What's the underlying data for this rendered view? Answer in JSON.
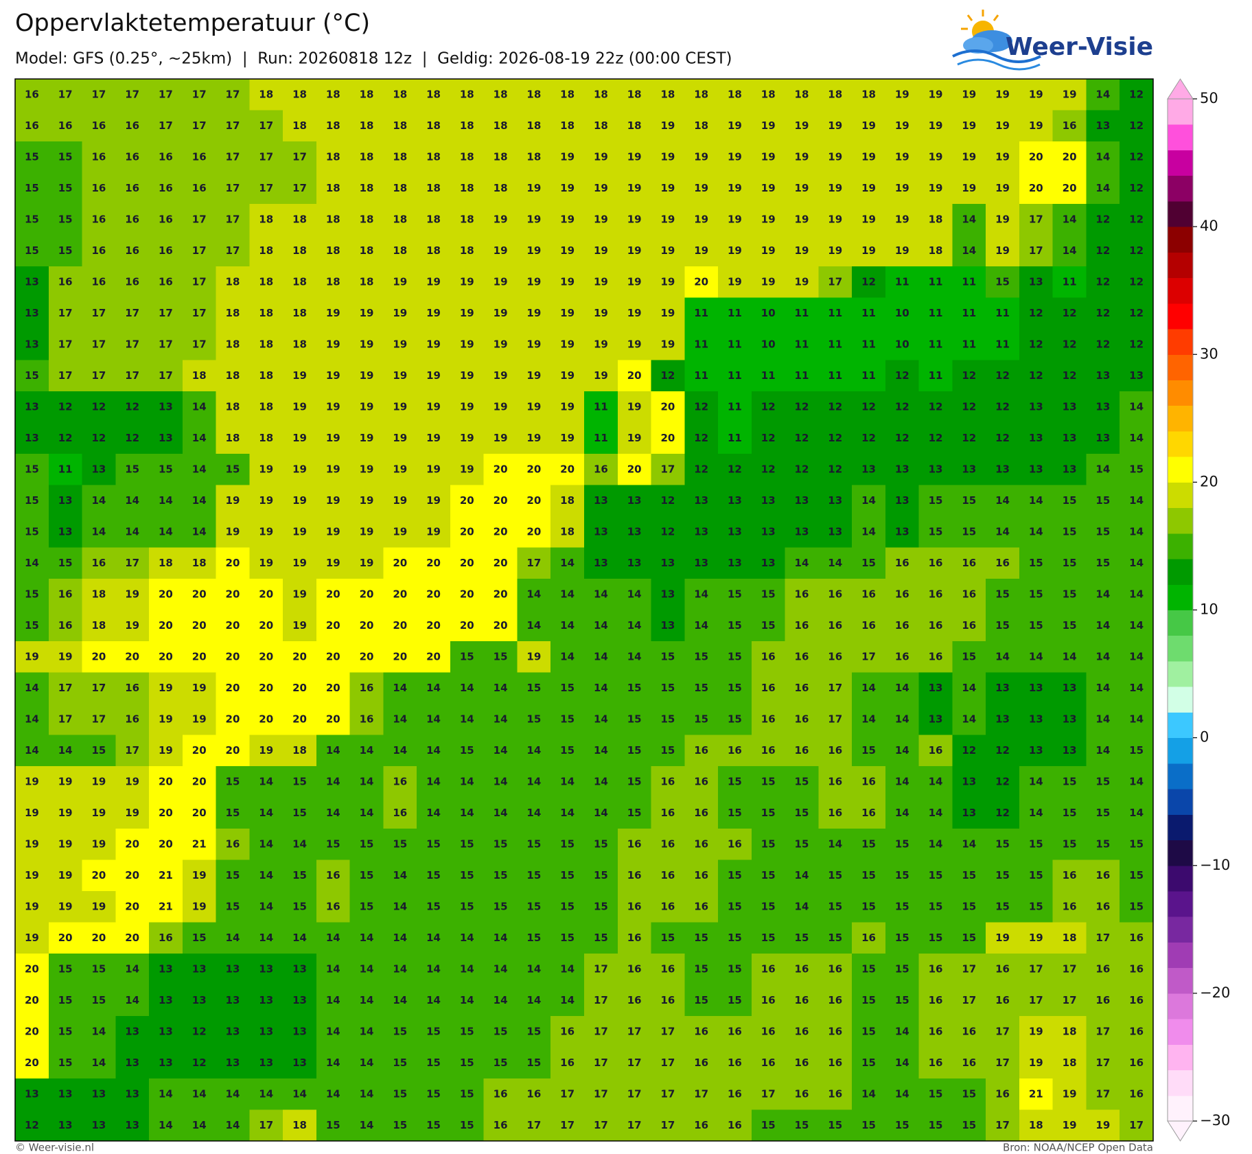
{
  "header": {
    "title": "Oppervlaktetemperatuur (°C)",
    "subtitle": "Model: GFS (0.25°, ~25km)  |  Run: 20260818 12z  |  Geldig: 2026-08-19 22z (00:00 CEST)"
  },
  "logo": "Weer-Visie",
  "map": {
    "type": "grid",
    "values": [
      [
        16,
        17,
        17,
        17,
        17,
        17,
        17,
        18,
        18,
        18,
        18,
        18,
        18,
        18,
        18,
        18,
        18,
        18,
        18,
        18,
        18,
        18,
        18,
        18,
        18,
        18,
        19,
        19,
        19,
        19,
        19,
        19,
        14,
        12
      ],
      [
        16,
        16,
        16,
        16,
        17,
        17,
        17,
        17,
        18,
        18,
        18,
        18,
        18,
        18,
        18,
        18,
        18,
        18,
        18,
        19,
        18,
        19,
        19,
        19,
        19,
        19,
        19,
        19,
        19,
        19,
        19,
        16,
        13,
        12
      ],
      [
        15,
        15,
        16,
        16,
        16,
        16,
        17,
        17,
        17,
        18,
        18,
        18,
        18,
        18,
        18,
        18,
        19,
        19,
        19,
        19,
        19,
        19,
        19,
        19,
        19,
        19,
        19,
        19,
        19,
        19,
        20,
        20,
        14,
        12
      ],
      [
        15,
        15,
        16,
        16,
        16,
        16,
        17,
        17,
        17,
        18,
        18,
        18,
        18,
        18,
        18,
        19,
        19,
        19,
        19,
        19,
        19,
        19,
        19,
        19,
        19,
        19,
        19,
        19,
        19,
        19,
        20,
        20,
        14,
        12
      ],
      [
        15,
        15,
        16,
        16,
        16,
        17,
        17,
        18,
        18,
        18,
        18,
        18,
        18,
        18,
        19,
        19,
        19,
        19,
        19,
        19,
        19,
        19,
        19,
        19,
        19,
        19,
        19,
        18,
        14,
        19,
        17,
        14,
        12,
        12
      ],
      [
        15,
        15,
        16,
        16,
        16,
        17,
        17,
        18,
        18,
        18,
        18,
        18,
        18,
        18,
        19,
        19,
        19,
        19,
        19,
        19,
        19,
        19,
        19,
        19,
        19,
        19,
        19,
        18,
        14,
        19,
        17,
        14,
        12,
        12
      ],
      [
        13,
        16,
        16,
        16,
        16,
        17,
        18,
        18,
        18,
        18,
        18,
        19,
        19,
        19,
        19,
        19,
        19,
        19,
        19,
        19,
        20,
        19,
        19,
        19,
        17,
        12,
        11,
        11,
        11,
        15,
        13,
        11,
        12,
        12
      ],
      [
        13,
        17,
        17,
        17,
        17,
        17,
        18,
        18,
        18,
        19,
        19,
        19,
        19,
        19,
        19,
        19,
        19,
        19,
        19,
        19,
        11,
        11,
        10,
        11,
        11,
        11,
        10,
        11,
        11,
        11,
        12,
        12,
        12,
        12
      ],
      [
        13,
        17,
        17,
        17,
        17,
        17,
        18,
        18,
        18,
        19,
        19,
        19,
        19,
        19,
        19,
        19,
        19,
        19,
        19,
        19,
        11,
        11,
        10,
        11,
        11,
        11,
        10,
        11,
        11,
        11,
        12,
        12,
        12,
        12
      ],
      [
        15,
        17,
        17,
        17,
        17,
        18,
        18,
        18,
        19,
        19,
        19,
        19,
        19,
        19,
        19,
        19,
        19,
        19,
        20,
        12,
        11,
        11,
        11,
        11,
        11,
        11,
        12,
        11,
        12,
        12,
        12,
        12,
        13,
        13
      ],
      [
        13,
        12,
        12,
        12,
        13,
        14,
        18,
        18,
        19,
        19,
        19,
        19,
        19,
        19,
        19,
        19,
        19,
        11,
        19,
        20,
        12,
        11,
        12,
        12,
        12,
        12,
        12,
        12,
        12,
        12,
        13,
        13,
        13,
        14
      ],
      [
        13,
        12,
        12,
        12,
        13,
        14,
        18,
        18,
        19,
        19,
        19,
        19,
        19,
        19,
        19,
        19,
        19,
        11,
        19,
        20,
        12,
        11,
        12,
        12,
        12,
        12,
        12,
        12,
        12,
        12,
        13,
        13,
        13,
        14
      ],
      [
        15,
        11,
        13,
        15,
        15,
        14,
        15,
        19,
        19,
        19,
        19,
        19,
        19,
        19,
        20,
        20,
        20,
        16,
        20,
        17,
        12,
        12,
        12,
        12,
        12,
        13,
        13,
        13,
        13,
        13,
        13,
        13,
        14,
        15
      ],
      [
        15,
        13,
        14,
        14,
        14,
        14,
        19,
        19,
        19,
        19,
        19,
        19,
        19,
        20,
        20,
        20,
        18,
        13,
        13,
        12,
        13,
        13,
        13,
        13,
        13,
        14,
        13,
        15,
        15,
        14,
        14,
        15,
        15,
        14
      ],
      [
        15,
        13,
        14,
        14,
        14,
        14,
        19,
        19,
        19,
        19,
        19,
        19,
        19,
        20,
        20,
        20,
        18,
        13,
        13,
        12,
        13,
        13,
        13,
        13,
        13,
        14,
        13,
        15,
        15,
        14,
        14,
        15,
        15,
        14
      ],
      [
        14,
        15,
        16,
        17,
        18,
        18,
        20,
        19,
        19,
        19,
        19,
        20,
        20,
        20,
        20,
        17,
        14,
        13,
        13,
        13,
        13,
        13,
        13,
        14,
        14,
        15,
        16,
        16,
        16,
        16,
        15,
        15,
        15,
        14
      ],
      [
        15,
        16,
        18,
        19,
        20,
        20,
        20,
        20,
        19,
        20,
        20,
        20,
        20,
        20,
        20,
        14,
        14,
        14,
        14,
        13,
        14,
        15,
        15,
        16,
        16,
        16,
        16,
        16,
        16,
        15,
        15,
        15,
        14,
        14
      ],
      [
        15,
        16,
        18,
        19,
        20,
        20,
        20,
        20,
        19,
        20,
        20,
        20,
        20,
        20,
        20,
        14,
        14,
        14,
        14,
        13,
        14,
        15,
        15,
        16,
        16,
        16,
        16,
        16,
        16,
        15,
        15,
        15,
        14,
        14
      ],
      [
        19,
        19,
        20,
        20,
        20,
        20,
        20,
        20,
        20,
        20,
        20,
        20,
        20,
        15,
        15,
        19,
        14,
        14,
        14,
        15,
        15,
        15,
        16,
        16,
        16,
        17,
        16,
        16,
        15,
        14,
        14,
        14,
        14,
        14
      ],
      [
        14,
        17,
        17,
        16,
        19,
        19,
        20,
        20,
        20,
        20,
        16,
        14,
        14,
        14,
        14,
        15,
        15,
        14,
        15,
        15,
        15,
        15,
        16,
        16,
        17,
        14,
        14,
        13,
        14,
        13,
        13,
        13,
        14,
        14
      ],
      [
        14,
        17,
        17,
        16,
        19,
        19,
        20,
        20,
        20,
        20,
        16,
        14,
        14,
        14,
        14,
        15,
        15,
        14,
        15,
        15,
        15,
        15,
        16,
        16,
        17,
        14,
        14,
        13,
        14,
        13,
        13,
        13,
        14,
        14
      ],
      [
        14,
        14,
        15,
        17,
        19,
        20,
        20,
        19,
        18,
        14,
        14,
        14,
        14,
        15,
        14,
        14,
        15,
        14,
        15,
        15,
        16,
        16,
        16,
        16,
        16,
        15,
        14,
        16,
        12,
        12,
        13,
        13,
        14,
        15
      ],
      [
        19,
        19,
        19,
        19,
        20,
        20,
        15,
        14,
        15,
        14,
        14,
        16,
        14,
        14,
        14,
        14,
        14,
        14,
        15,
        16,
        16,
        15,
        15,
        15,
        16,
        16,
        14,
        14,
        13,
        12,
        14,
        15,
        15,
        14
      ],
      [
        19,
        19,
        19,
        19,
        20,
        20,
        15,
        14,
        15,
        14,
        14,
        16,
        14,
        14,
        14,
        14,
        14,
        14,
        15,
        16,
        16,
        15,
        15,
        15,
        16,
        16,
        14,
        14,
        13,
        12,
        14,
        15,
        15,
        14
      ],
      [
        19,
        19,
        19,
        20,
        20,
        21,
        16,
        14,
        14,
        15,
        15,
        15,
        15,
        15,
        15,
        15,
        15,
        15,
        16,
        16,
        16,
        16,
        15,
        15,
        14,
        15,
        15,
        14,
        14,
        15,
        15,
        15,
        15,
        15
      ],
      [
        19,
        19,
        20,
        20,
        21,
        19,
        15,
        14,
        15,
        16,
        15,
        14,
        15,
        15,
        15,
        15,
        15,
        15,
        16,
        16,
        16,
        15,
        15,
        14,
        15,
        15,
        15,
        15,
        15,
        15,
        15,
        16,
        16,
        15
      ],
      [
        19,
        19,
        19,
        20,
        21,
        19,
        15,
        14,
        15,
        16,
        15,
        14,
        15,
        15,
        15,
        15,
        15,
        15,
        16,
        16,
        16,
        15,
        15,
        14,
        15,
        15,
        15,
        15,
        15,
        15,
        15,
        16,
        16,
        15
      ],
      [
        19,
        20,
        20,
        20,
        16,
        15,
        14,
        14,
        14,
        14,
        14,
        14,
        14,
        14,
        14,
        15,
        15,
        15,
        16,
        15,
        15,
        15,
        15,
        15,
        15,
        16,
        15,
        15,
        15,
        19,
        19,
        18,
        17,
        16
      ],
      [
        20,
        15,
        15,
        14,
        13,
        13,
        13,
        13,
        13,
        14,
        14,
        14,
        14,
        14,
        14,
        14,
        14,
        17,
        16,
        16,
        15,
        15,
        16,
        16,
        16,
        15,
        15,
        16,
        17,
        16,
        17,
        17,
        16,
        16
      ],
      [
        20,
        15,
        15,
        14,
        13,
        13,
        13,
        13,
        13,
        14,
        14,
        14,
        14,
        14,
        14,
        14,
        14,
        17,
        16,
        16,
        15,
        15,
        16,
        16,
        16,
        15,
        15,
        16,
        17,
        16,
        17,
        17,
        16,
        16
      ],
      [
        20,
        15,
        14,
        13,
        13,
        12,
        13,
        13,
        13,
        14,
        14,
        15,
        15,
        15,
        15,
        15,
        16,
        17,
        17,
        17,
        16,
        16,
        16,
        16,
        16,
        15,
        14,
        16,
        16,
        17,
        19,
        18,
        17,
        16
      ],
      [
        20,
        15,
        14,
        13,
        13,
        12,
        13,
        13,
        13,
        14,
        14,
        15,
        15,
        15,
        15,
        15,
        16,
        17,
        17,
        17,
        16,
        16,
        16,
        16,
        16,
        15,
        14,
        16,
        16,
        17,
        19,
        18,
        17,
        16
      ],
      [
        13,
        13,
        13,
        13,
        14,
        14,
        14,
        14,
        14,
        14,
        14,
        15,
        15,
        15,
        16,
        16,
        17,
        17,
        17,
        17,
        17,
        16,
        17,
        16,
        16,
        14,
        14,
        15,
        15,
        16,
        21,
        19,
        17,
        16
      ],
      [
        12,
        13,
        13,
        13,
        14,
        14,
        14,
        17,
        18,
        15,
        14,
        15,
        15,
        15,
        16,
        17,
        17,
        17,
        17,
        17,
        16,
        16,
        15,
        15,
        15,
        15,
        15,
        15,
        15,
        17,
        18,
        19,
        19,
        17
      ]
    ]
  },
  "colorbar": {
    "lim": [
      -30,
      50
    ],
    "ticks": [
      50,
      40,
      30,
      20,
      10,
      0,
      {
        "value": -10,
        "label": "−10"
      },
      {
        "value": -20,
        "label": "−20"
      },
      {
        "value": -30,
        "label": "−30"
      }
    ],
    "colors": [
      "#fff2fc",
      "#ffdcf8",
      "#ffb4f0",
      "#f08cec",
      "#dc78dc",
      "#c05ac8",
      "#a03cb4",
      "#7828a0",
      "#5a148c",
      "#3c0a6e",
      "#1e0a46",
      "#0a1a6e",
      "#0a46aa",
      "#0a6ec8",
      "#14a0e6",
      "#3cc8ff",
      "#d2ffe6",
      "#a0f0a0",
      "#6edc6e",
      "#46c846",
      "#00b400",
      "#009a00",
      "#3cb100",
      "#8ec800",
      "#ccdc00",
      "#ffff00",
      "#ffd700",
      "#ffb400",
      "#ff8c00",
      "#ff6400",
      "#ff3c00",
      "#ff0000",
      "#dc0000",
      "#b40000",
      "#8c0000",
      "#500032",
      "#8c0064",
      "#c800a0",
      "#ff50dc",
      "#ffaae6"
    ]
  },
  "footer": {
    "left": "© Weer-visie.nl",
    "right": "Bron: NOAA/NCEP Open Data"
  }
}
